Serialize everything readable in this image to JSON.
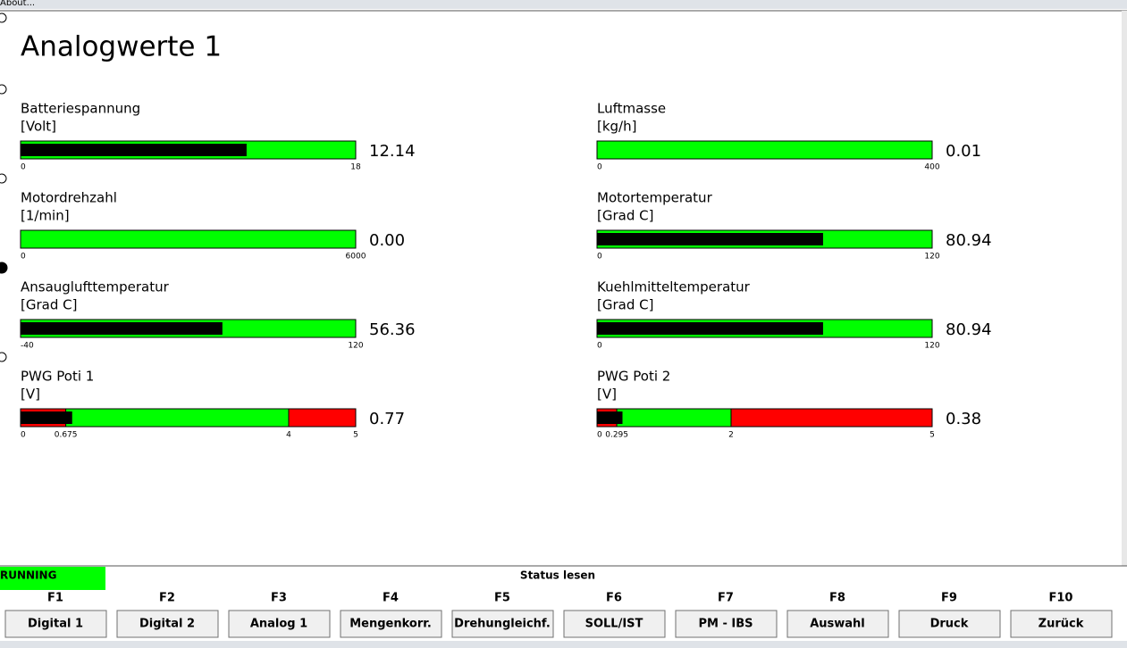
{
  "menu": {
    "item": "About..."
  },
  "title": "Analogwerte 1",
  "gauges": [
    {
      "name": "Batteriespannung",
      "unit": "[Volt]",
      "reading": 12.14,
      "ticks": [
        0,
        18
      ],
      "zone_colors": [
        "#00ff00"
      ]
    },
    {
      "name": "Luftmasse",
      "unit": "[kg/h]",
      "reading": 0.01,
      "ticks": [
        0,
        400
      ],
      "zone_colors": [
        "#00ff00"
      ]
    },
    {
      "name": "Motordrehzahl",
      "unit": "[1/min]",
      "reading": {
        "value": 0,
        "label": "0.00"
      },
      "ticks": [
        0,
        6000
      ],
      "zone_colors": [
        "#00ff00"
      ]
    },
    {
      "name": "Motortemperatur",
      "unit": "[Grad C]",
      "reading": 80.94,
      "ticks": [
        0,
        120
      ],
      "zone_colors": [
        "#00ff00"
      ]
    },
    {
      "name": "Ansauglufttemperatur",
      "unit": "[Grad C]",
      "reading": 56.36,
      "ticks": [
        -40,
        120
      ],
      "zone_colors": [
        "#00ff00"
      ]
    },
    {
      "name": "Kuehlmitteltemperatur",
      "unit": "[Grad C]",
      "reading": 80.94,
      "ticks": [
        0,
        120
      ],
      "zone_colors": [
        "#00ff00"
      ]
    },
    {
      "name": "PWG Poti 1",
      "unit": "[V]",
      "reading": 0.77,
      "ticks": [
        0,
        0.675,
        4,
        5
      ],
      "zone_colors": [
        "#ff0000",
        "#00ff00",
        "#ff0000"
      ]
    },
    {
      "name": "PWG Poti 2",
      "unit": "[V]",
      "reading": 0.38,
      "ticks": [
        0,
        0.295,
        2,
        5
      ],
      "zone_colors": [
        "#ff0000",
        "#00ff00",
        "#ff0000"
      ]
    }
  ],
  "status": {
    "state": "RUNNING",
    "label": "Status lesen"
  },
  "keys": [
    {
      "key": "F1",
      "button": "Digital 1"
    },
    {
      "key": "F2",
      "button": "Digital 2"
    },
    {
      "key": "F3",
      "button": "Analog 1"
    },
    {
      "key": "F4",
      "button": "Mengenkorr."
    },
    {
      "key": "F5",
      "button": "Drehungleichf."
    },
    {
      "key": "F6",
      "button": "SOLL/IST"
    },
    {
      "key": "F7",
      "button": "PM - IBS"
    },
    {
      "key": "F8",
      "button": "Auswahl"
    },
    {
      "key": "F9",
      "button": "Druck"
    },
    {
      "key": "F10",
      "button": "Zurück"
    }
  ]
}
